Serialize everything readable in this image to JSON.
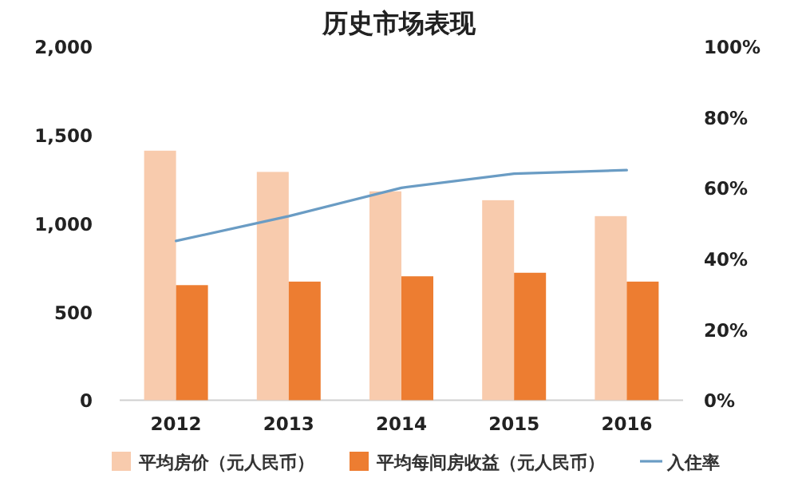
{
  "chart_data": {
    "type": "bar",
    "title": "历史市场表现",
    "categories": [
      "2012",
      "2013",
      "2014",
      "2015",
      "2016"
    ],
    "series": [
      {
        "name": "平均房价（元人民币）",
        "color": "#f8cbad",
        "values": [
          1410,
          1290,
          1180,
          1130,
          1040
        ]
      },
      {
        "name": "平均每间房收益（元人民币）",
        "color": "#ed7d31",
        "values": [
          650,
          670,
          700,
          720,
          670
        ]
      },
      {
        "name": "入住率",
        "type": "line",
        "axis": "y2",
        "color": "#6a9cc4",
        "values": [
          45,
          52,
          60,
          64,
          65
        ]
      }
    ],
    "ylim": [
      0,
      2000
    ],
    "yticks": [
      {
        "value": 0,
        "label": "0"
      },
      {
        "value": 500,
        "label": "500"
      },
      {
        "value": 1000,
        "label": "1,000"
      },
      {
        "value": 1500,
        "label": "1,500"
      },
      {
        "value": 2000,
        "label": "2,000"
      }
    ],
    "y2lim": [
      0,
      100
    ],
    "y2ticks": [
      {
        "value": 0,
        "label": "0%"
      },
      {
        "value": 20,
        "label": "20%"
      },
      {
        "value": 40,
        "label": "40%"
      },
      {
        "value": 60,
        "label": "60%"
      },
      {
        "value": 80,
        "label": "80%"
      },
      {
        "value": 100,
        "label": "100%"
      }
    ],
    "legend": "bottom"
  }
}
